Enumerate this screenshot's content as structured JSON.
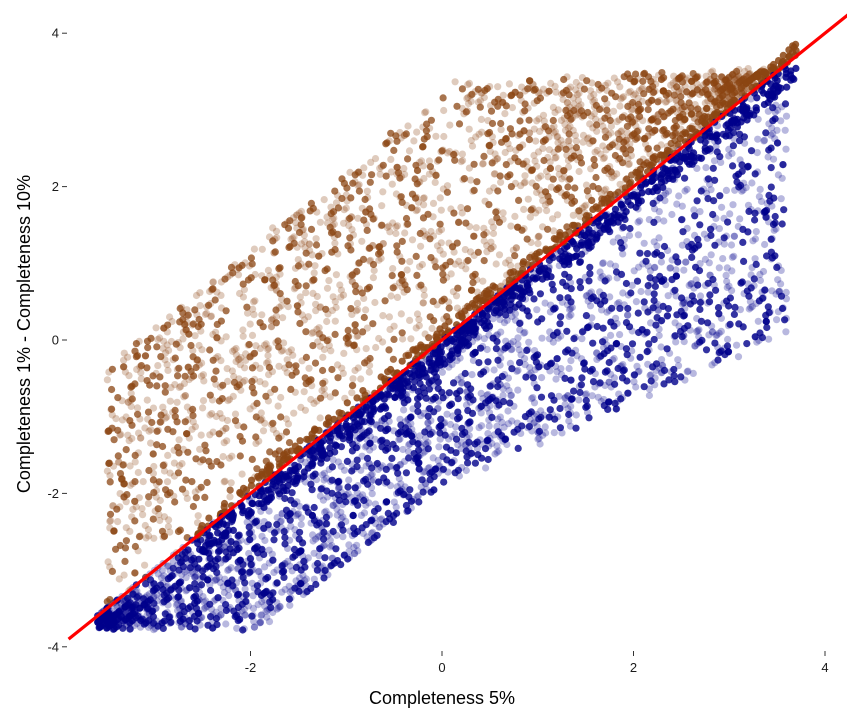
{
  "chart_data": {
    "type": "scatter",
    "title": "",
    "xlabel": "Completeness 5%",
    "ylabel": "Completeness 1% - Completeness 10%",
    "xlim": [
      -4.1,
      4.3
    ],
    "ylim": [
      -4.0,
      4.2
    ],
    "x_ticks": [
      -2,
      0,
      2,
      4
    ],
    "y_ticks": [
      -4,
      -2,
      0,
      2,
      4
    ],
    "grid": false,
    "legend": "none",
    "reference_line": {
      "slope": 1,
      "intercept": 0,
      "color": "#ff0000"
    },
    "series": [
      {
        "color": "#8B4513",
        "opacity": 0.3,
        "description_points": [
          [
            -3.5,
            -3.2
          ],
          [
            -3.3,
            -2.9
          ],
          [
            -3.1,
            -2.6
          ],
          [
            -2.9,
            -2.5
          ],
          [
            -2.7,
            -2.2
          ],
          [
            -2.5,
            -1.9
          ],
          [
            -2.3,
            -1.6
          ],
          [
            -2.1,
            -1.3
          ],
          [
            -1.9,
            -1.0
          ],
          [
            -1.7,
            -0.8
          ],
          [
            -1.5,
            -0.5
          ],
          [
            -1.3,
            -0.2
          ],
          [
            -1.2,
            0.1
          ],
          [
            -1.0,
            0.4
          ],
          [
            -0.8,
            0.7
          ],
          [
            -0.6,
            1.0
          ],
          [
            -0.4,
            1.4
          ],
          [
            -0.2,
            1.7
          ],
          [
            0.0,
            2.0
          ],
          [
            0.2,
            2.3
          ],
          [
            0.4,
            2.5
          ],
          [
            0.6,
            2.8
          ],
          [
            0.8,
            3.0
          ],
          [
            1.0,
            3.2
          ],
          [
            1.2,
            3.3
          ],
          [
            1.4,
            3.3
          ],
          [
            1.8,
            3.35
          ],
          [
            2.2,
            3.4
          ],
          [
            2.6,
            3.5
          ],
          [
            3.0,
            3.6
          ]
        ]
      },
      {
        "color": "#00008B",
        "opacity": 0.3,
        "description_points": [
          [
            -3.5,
            -3.7
          ],
          [
            -3.2,
            -3.5
          ],
          [
            -2.8,
            -3.3
          ],
          [
            -2.4,
            -3.0
          ],
          [
            -2.0,
            -2.8
          ],
          [
            -1.6,
            -2.5
          ],
          [
            -1.2,
            -2.2
          ],
          [
            -0.8,
            -1.9
          ],
          [
            -0.4,
            -1.6
          ],
          [
            0.0,
            -1.5
          ],
          [
            0.4,
            -1.4
          ],
          [
            0.8,
            -1.3
          ],
          [
            1.2,
            -1.0
          ],
          [
            1.6,
            -0.8
          ],
          [
            2.0,
            -0.5
          ],
          [
            2.4,
            -0.1
          ],
          [
            2.8,
            0.3
          ],
          [
            3.0,
            0.6
          ],
          [
            3.1,
            1.0
          ],
          [
            3.2,
            1.5
          ],
          [
            3.3,
            2.0
          ],
          [
            3.4,
            2.3
          ],
          [
            3.5,
            2.6
          ],
          [
            3.6,
            2.8
          ]
        ]
      }
    ]
  }
}
